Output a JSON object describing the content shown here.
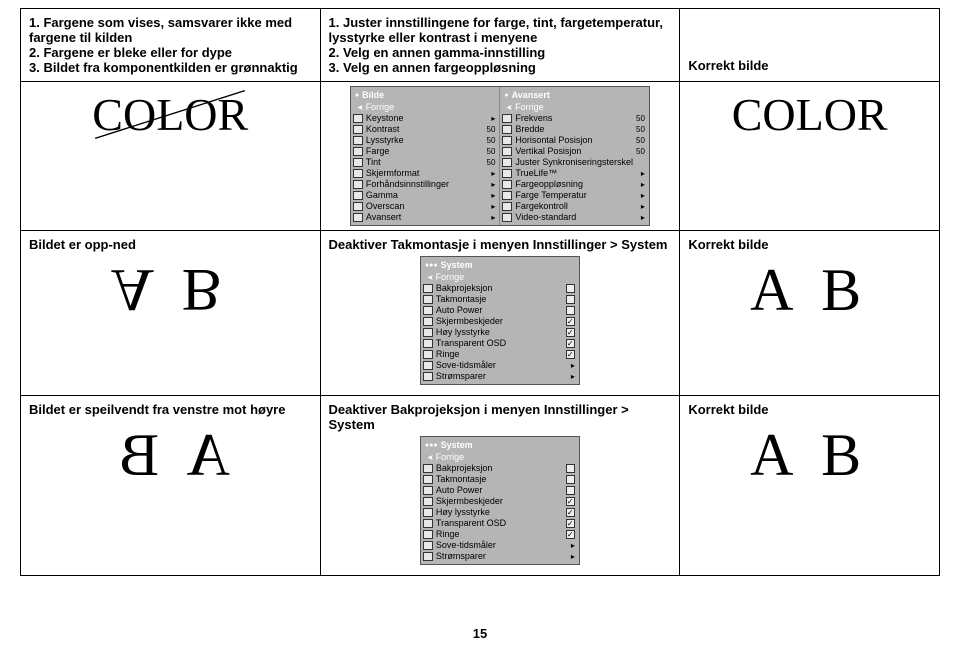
{
  "row1": {
    "problem": "1. Fargene som vises, samsvarer ikke med fargene til kilden\n2. Fargene er bleke eller for dype\n3. Bildet fra komponentkilden er grønnaktig",
    "solution": "1. Juster innstillingene for farge, tint, fargetemperatur, lysstyrke eller kontrast i menyene\n2. Velg en annen gamma-innstilling\n3. Velg en annen fargeoppløsning",
    "result": "Korrekt bilde"
  },
  "row2": {
    "color_text": "COLOR",
    "menus": {
      "left": {
        "title": "Bilde",
        "back": "Forrige",
        "items": [
          {
            "lbl": "Keystone",
            "type": "arr"
          },
          {
            "lbl": "Kontrast",
            "type": "val",
            "val": "50"
          },
          {
            "lbl": "Lysstyrke",
            "type": "val",
            "val": "50"
          },
          {
            "lbl": "Farge",
            "type": "val",
            "val": "50"
          },
          {
            "lbl": "Tint",
            "type": "val",
            "val": "50"
          },
          {
            "lbl": "Skjermformat",
            "type": "arr"
          },
          {
            "lbl": "Forhåndsinnstillinger",
            "type": "arr"
          },
          {
            "lbl": "Gamma",
            "type": "arr"
          },
          {
            "lbl": "Overscan",
            "type": "arr"
          },
          {
            "lbl": "Avansert",
            "type": "arr"
          }
        ]
      },
      "right": {
        "title": "Avansert",
        "back": "Forrige",
        "items": [
          {
            "lbl": "Frekvens",
            "type": "val",
            "val": "50"
          },
          {
            "lbl": "Bredde",
            "type": "val",
            "val": "50"
          },
          {
            "lbl": "Horisontal Posisjon",
            "type": "val",
            "val": "50"
          },
          {
            "lbl": "Vertikal Posisjon",
            "type": "val",
            "val": "50"
          },
          {
            "lbl": "Juster Synkroniseringsterskel",
            "type": "none"
          },
          {
            "lbl": "TrueLife™",
            "type": "arr"
          },
          {
            "lbl": "Fargeoppløsning",
            "type": "arr"
          },
          {
            "lbl": "Farge Temperatur",
            "type": "arr"
          },
          {
            "lbl": "Fargekontroll",
            "type": "arr"
          },
          {
            "lbl": "Video-standard",
            "type": "arr"
          }
        ]
      }
    }
  },
  "row3": {
    "problem": "Bildet er opp-ned",
    "solution_title": "Deaktiver Takmontasje i menyen Innstillinger > System",
    "result": "Korrekt bilde",
    "ab": "A B"
  },
  "row4": {
    "problem": "Bildet er speilvendt fra venstre mot høyre",
    "solution_title": "Deaktiver Bakprojeksjon i menyen Innstillinger > System",
    "result": "Korrekt bilde",
    "ab": "A B"
  },
  "system_menu": {
    "title": "System",
    "back": "Forrige",
    "items": [
      {
        "lbl": "Bakprojeksjon",
        "checked": false
      },
      {
        "lbl": "Takmontasje",
        "checked": false
      },
      {
        "lbl": "Auto Power",
        "checked": false
      },
      {
        "lbl": "Skjermbeskjeder",
        "checked": true
      },
      {
        "lbl": "Høy lysstyrke",
        "checked": true
      },
      {
        "lbl": "Transparent OSD",
        "checked": true
      },
      {
        "lbl": "Ringe",
        "checked": true
      },
      {
        "lbl": "Sove-tidsmåler",
        "type": "arr"
      },
      {
        "lbl": "Strømsparer",
        "type": "arr"
      }
    ]
  },
  "page": "15"
}
